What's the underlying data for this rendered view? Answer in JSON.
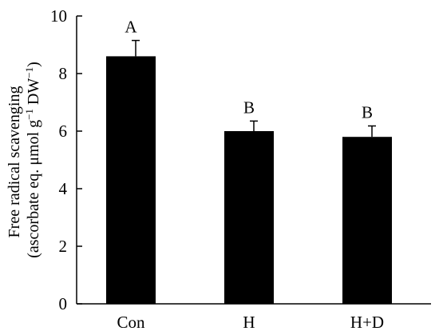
{
  "chart_data": {
    "type": "bar",
    "categories": [
      "Con",
      "H",
      "H+D"
    ],
    "values": [
      8.6,
      6.0,
      5.8
    ],
    "errors": [
      0.55,
      0.35,
      0.38
    ],
    "significance": [
      "A",
      "B",
      "B"
    ],
    "ylabel_line1": "Free radical scavenging",
    "ylabel_line2_pre": "(ascorbate eq. μmol g",
    "ylabel_line2_sup1": "−1",
    "ylabel_line2_mid": " DW",
    "ylabel_line2_sup2": "−1",
    "ylabel_line2_post": ")",
    "xlabel": "",
    "ylim": [
      0,
      10
    ],
    "yticks": [
      0,
      2,
      4,
      6,
      8,
      10
    ],
    "bar_color": "#000000",
    "grid": false
  }
}
